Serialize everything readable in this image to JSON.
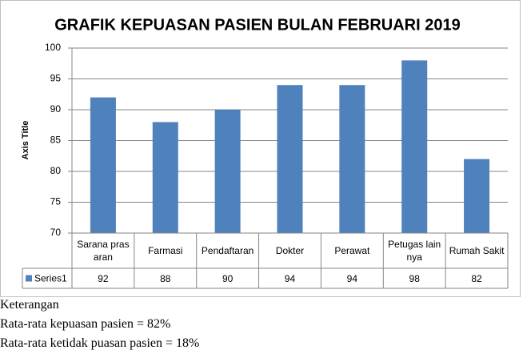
{
  "chart_data": {
    "type": "bar",
    "title": "GRAFIK KEPUASAN PASIEN BULAN FEBRUARI 2019",
    "y_label": "Axis Title",
    "categories": [
      "Sarana prasaran",
      "Farmasi",
      "Pendaftaran",
      "Dokter",
      "Perawat",
      "Petugas lainnya",
      "Rumah Sakit"
    ],
    "series": [
      {
        "name": "Series1",
        "color": "#4f81bd",
        "values": [
          92,
          88,
          90,
          94,
          94,
          98,
          82
        ]
      }
    ],
    "ylim": [
      70,
      100
    ],
    "yticks": [
      70,
      75,
      80,
      85,
      90,
      95,
      100
    ],
    "grid": true,
    "data_table": true
  },
  "notes": [
    "Keterangan",
    "Rata-rata kepuasan pasien = 82%",
    "Rata-rata ketidak puasan pasien = 18%"
  ]
}
